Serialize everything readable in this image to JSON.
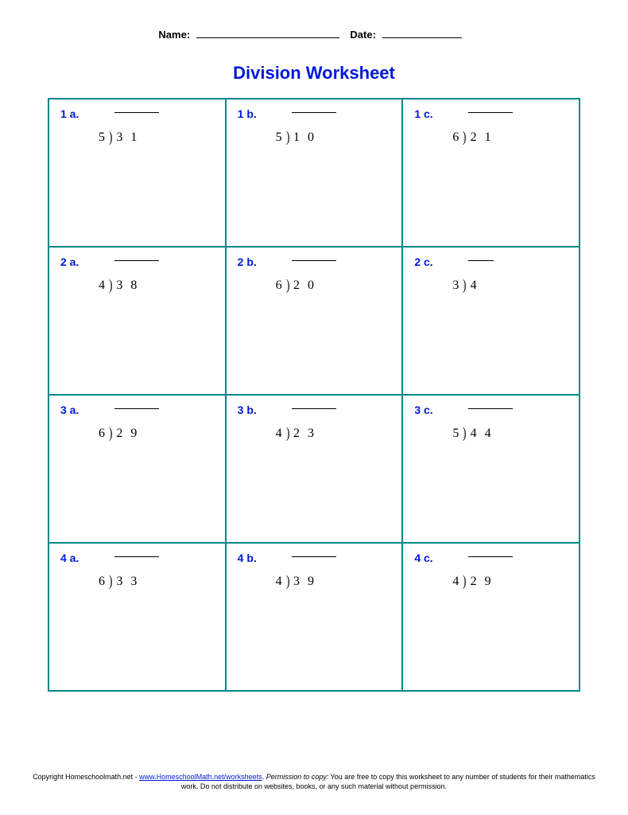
{
  "header": {
    "name_label": "Name:",
    "date_label": "Date:"
  },
  "title": "Division Worksheet",
  "problems": [
    [
      {
        "label": "1 a.",
        "divisor": "5",
        "dividend": "3  1"
      },
      {
        "label": "1 b.",
        "divisor": "5",
        "dividend": "1  0"
      },
      {
        "label": "1 c.",
        "divisor": "6",
        "dividend": "2  1"
      }
    ],
    [
      {
        "label": "2 a.",
        "divisor": "4",
        "dividend": "3  8"
      },
      {
        "label": "2 b.",
        "divisor": "6",
        "dividend": "2  0"
      },
      {
        "label": "2 c.",
        "divisor": "3",
        "dividend": "4"
      }
    ],
    [
      {
        "label": "3 a.",
        "divisor": "6",
        "dividend": "2  9"
      },
      {
        "label": "3 b.",
        "divisor": "4",
        "dividend": "2  3"
      },
      {
        "label": "3 c.",
        "divisor": "5",
        "dividend": "4  4"
      }
    ],
    [
      {
        "label": "4 a.",
        "divisor": "6",
        "dividend": "3  3"
      },
      {
        "label": "4 b.",
        "divisor": "4",
        "dividend": "3  9"
      },
      {
        "label": "4 c.",
        "divisor": "4",
        "dividend": "2  9"
      }
    ]
  ],
  "footer": {
    "copyright_prefix": "Copyright Homeschoolmath.net - ",
    "link_text": "www.HomeschoolMath.net/worksheets",
    "perm_label": "Permission to copy:",
    "perm_text": " You are free to copy this worksheet to any number of students for their mathematics work. Do not distribute on websites, books, or any such material without permission."
  },
  "colors": {
    "border": "#008888",
    "label": "#0018d8",
    "title": "#0018d8",
    "text": "#000000",
    "background": "#ffffff"
  }
}
